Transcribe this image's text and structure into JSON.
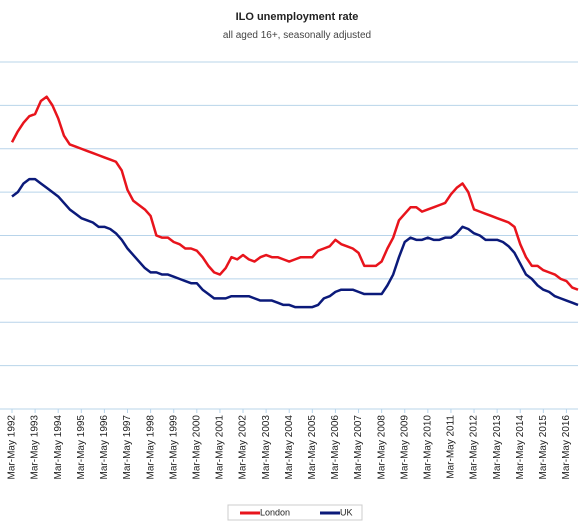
{
  "chart_data": {
    "type": "line",
    "title": "ILO unemployment rate",
    "subtitle": "all aged 16+, seasonally adjusted",
    "categories": [
      "Mar-May 1992",
      null,
      null,
      null,
      "Mar-May 1993",
      null,
      null,
      null,
      "Mar-May 1994",
      null,
      null,
      null,
      "Mar-May 1995",
      null,
      null,
      null,
      "Mar-May 1996",
      null,
      null,
      null,
      "Mar-May 1997",
      null,
      null,
      null,
      "Mar-May 1998",
      null,
      null,
      null,
      "Mar-May 1999",
      null,
      null,
      null,
      "Mar-May 2000",
      null,
      null,
      null,
      "Mar-May 2001",
      null,
      null,
      null,
      "Mar-May 2002",
      null,
      null,
      null,
      "Mar-May 2003",
      null,
      null,
      null,
      "Mar-May 2004",
      null,
      null,
      null,
      "Mar-May 2005",
      null,
      null,
      null,
      "Mar-May 2006",
      null,
      null,
      null,
      "Mar-May 2007",
      null,
      null,
      null,
      "Mar-May 2008",
      null,
      null,
      null,
      "Mar-May 2009",
      null,
      null,
      null,
      "Mar-May 2010",
      null,
      null,
      null,
      "Mar-May 2011",
      null,
      null,
      null,
      "Mar-May 2012",
      null,
      null,
      null,
      "Mar-May 2013",
      null,
      null,
      null,
      "Mar-May 2014",
      null,
      null,
      null,
      "Mar-May 2015",
      null,
      null,
      null,
      "Mar-May 2016",
      null,
      null
    ],
    "series": [
      {
        "name": "London",
        "color": "#e8141c",
        "values": [
          12.3,
          12.8,
          13.2,
          13.5,
          13.6,
          14.2,
          14.4,
          14.0,
          13.4,
          12.6,
          12.2,
          12.1,
          12.0,
          11.9,
          11.8,
          11.7,
          11.6,
          11.5,
          11.4,
          11.0,
          10.1,
          9.6,
          9.4,
          9.2,
          8.9,
          8.0,
          7.9,
          7.9,
          7.7,
          7.6,
          7.4,
          7.4,
          7.3,
          7.0,
          6.6,
          6.3,
          6.2,
          6.5,
          7.0,
          6.9,
          7.1,
          6.9,
          6.8,
          7.0,
          7.1,
          7.0,
          7.0,
          6.9,
          6.8,
          6.9,
          7.0,
          7.0,
          7.0,
          7.3,
          7.4,
          7.5,
          7.8,
          7.6,
          7.5,
          7.4,
          7.2,
          6.6,
          6.6,
          6.6,
          6.8,
          7.4,
          7.9,
          8.7,
          9.0,
          9.3,
          9.3,
          9.1,
          9.2,
          9.3,
          9.4,
          9.5,
          9.9,
          10.2,
          10.4,
          10.0,
          9.2,
          9.1,
          9.0,
          8.9,
          8.8,
          8.7,
          8.6,
          8.4,
          7.6,
          7.0,
          6.6,
          6.6,
          6.4,
          6.3,
          6.2,
          6.0,
          5.9,
          5.6,
          5.5
        ]
      },
      {
        "name": "UK",
        "color": "#0b1a7a",
        "values": [
          9.8,
          10.0,
          10.4,
          10.6,
          10.6,
          10.4,
          10.2,
          10.0,
          9.8,
          9.5,
          9.2,
          9.0,
          8.8,
          8.7,
          8.6,
          8.4,
          8.4,
          8.3,
          8.1,
          7.8,
          7.4,
          7.1,
          6.8,
          6.5,
          6.3,
          6.3,
          6.2,
          6.2,
          6.1,
          6.0,
          5.9,
          5.8,
          5.8,
          5.5,
          5.3,
          5.1,
          5.1,
          5.1,
          5.2,
          5.2,
          5.2,
          5.2,
          5.1,
          5.0,
          5.0,
          5.0,
          4.9,
          4.8,
          4.8,
          4.7,
          4.7,
          4.7,
          4.7,
          4.8,
          5.1,
          5.2,
          5.4,
          5.5,
          5.5,
          5.5,
          5.4,
          5.3,
          5.3,
          5.3,
          5.3,
          5.7,
          6.2,
          7.0,
          7.7,
          7.9,
          7.8,
          7.8,
          7.9,
          7.8,
          7.8,
          7.9,
          7.9,
          8.1,
          8.4,
          8.3,
          8.1,
          8.0,
          7.8,
          7.8,
          7.8,
          7.7,
          7.5,
          7.2,
          6.7,
          6.2,
          6.0,
          5.7,
          5.5,
          5.4,
          5.2,
          5.1,
          5.0,
          4.9,
          4.8
        ]
      }
    ],
    "ylim": [
      0,
      16
    ],
    "yticks": [
      0,
      2,
      4,
      6,
      8,
      10,
      12,
      14,
      16
    ],
    "grid": true
  }
}
